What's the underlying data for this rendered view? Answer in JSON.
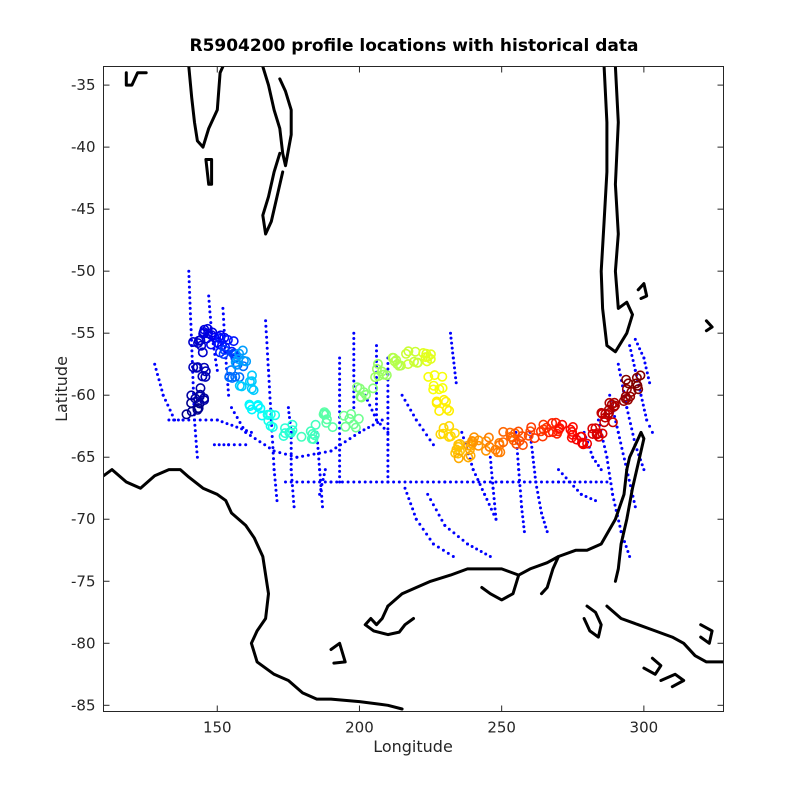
{
  "chart_data": {
    "type": "scatter",
    "title": "R5904200 profile locations with historical data",
    "xlabel": "Longitude",
    "ylabel": "Latitude",
    "xlim": [
      110,
      328
    ],
    "ylim": [
      -85.5,
      -33.5
    ],
    "xticks": [
      150,
      200,
      250,
      300
    ],
    "yticks": [
      -35,
      -40,
      -45,
      -50,
      -55,
      -60,
      -65,
      -70,
      -75,
      -80,
      -85
    ],
    "grid": false,
    "legend": "none",
    "colors": {
      "historical": "#0000ff",
      "coastline": "#000000",
      "frame": "#262626",
      "colormap": [
        "#00008f",
        "#0000ff",
        "#00ffff",
        "#80ff80",
        "#ffff00",
        "#ff8000",
        "#ff0000",
        "#800000"
      ]
    },
    "float_track": [
      [
        142,
        -61
      ],
      [
        143,
        -60
      ],
      [
        143.5,
        -58
      ],
      [
        144,
        -56
      ],
      [
        146,
        -55
      ],
      [
        150,
        -55.5
      ],
      [
        153,
        -56
      ],
      [
        155,
        -57
      ],
      [
        157,
        -58
      ],
      [
        159,
        -57
      ],
      [
        160,
        -59
      ],
      [
        163,
        -61
      ],
      [
        168,
        -62
      ],
      [
        175,
        -63
      ],
      [
        182,
        -63
      ],
      [
        190,
        -62
      ],
      [
        197,
        -62
      ],
      [
        202,
        -60
      ],
      [
        207,
        -58
      ],
      [
        212,
        -57
      ],
      [
        218,
        -57
      ],
      [
        223,
        -57
      ],
      [
        227,
        -59
      ],
      [
        229,
        -61
      ],
      [
        231,
        -63
      ],
      [
        233,
        -64.5
      ],
      [
        237,
        -64.5
      ],
      [
        242,
        -64
      ],
      [
        248,
        -64
      ],
      [
        253,
        -63.5
      ],
      [
        258,
        -63.5
      ],
      [
        263,
        -63
      ],
      [
        268,
        -62.5
      ],
      [
        273,
        -63
      ],
      [
        278,
        -63.5
      ],
      [
        283,
        -63
      ],
      [
        287,
        -62
      ],
      [
        290,
        -61
      ],
      [
        293,
        -60
      ],
      [
        296,
        -59
      ]
    ],
    "historical_lines": [
      [
        [
          140,
          -50
        ],
        [
          141,
          -56
        ],
        [
          142,
          -62
        ],
        [
          143,
          -65
        ]
      ],
      [
        [
          133,
          -62
        ],
        [
          138,
          -62
        ],
        [
          150,
          -62
        ],
        [
          162,
          -63
        ]
      ],
      [
        [
          128,
          -57.5
        ],
        [
          131,
          -60
        ],
        [
          135,
          -62
        ]
      ],
      [
        [
          147,
          -52
        ],
        [
          148,
          -55
        ],
        [
          150,
          -58
        ]
      ],
      [
        [
          152,
          -53
        ],
        [
          153,
          -57
        ],
        [
          154,
          -60
        ]
      ],
      [
        [
          155,
          -61
        ],
        [
          160,
          -63
        ],
        [
          170,
          -64.5
        ],
        [
          178,
          -65
        ],
        [
          190,
          -64.5
        ],
        [
          200,
          -63
        ],
        [
          208,
          -62
        ]
      ],
      [
        [
          149,
          -64
        ],
        [
          154,
          -64
        ],
        [
          160,
          -64
        ]
      ],
      [
        [
          167,
          -54
        ],
        [
          168,
          -58
        ],
        [
          169,
          -62
        ],
        [
          170,
          -66
        ],
        [
          171,
          -68.5
        ]
      ],
      [
        [
          175,
          -61
        ],
        [
          176,
          -63
        ],
        [
          176,
          -66
        ],
        [
          177,
          -69
        ]
      ],
      [
        [
          174,
          -67
        ],
        [
          190,
          -67
        ],
        [
          210,
          -67
        ],
        [
          230,
          -67
        ],
        [
          250,
          -67
        ],
        [
          270,
          -67
        ],
        [
          287,
          -67
        ]
      ],
      [
        [
          185,
          -63
        ],
        [
          186,
          -66
        ],
        [
          187,
          -69
        ]
      ],
      [
        [
          193,
          -57
        ],
        [
          193,
          -60
        ],
        [
          193,
          -64
        ],
        [
          193,
          -67
        ]
      ],
      [
        [
          210,
          -57
        ],
        [
          210,
          -61
        ],
        [
          210,
          -64
        ],
        [
          210,
          -67
        ]
      ],
      [
        [
          206,
          -56
        ],
        [
          206,
          -59
        ],
        [
          206,
          -62
        ]
      ],
      [
        [
          198,
          -55
        ],
        [
          198,
          -58
        ],
        [
          198,
          -61
        ]
      ],
      [
        [
          215,
          -60
        ],
        [
          220,
          -62
        ],
        [
          226,
          -64
        ]
      ],
      [
        [
          216,
          -67.5
        ],
        [
          220,
          -70
        ],
        [
          226,
          -72
        ],
        [
          233,
          -73
        ]
      ],
      [
        [
          224,
          -68
        ],
        [
          230,
          -70.5
        ],
        [
          238,
          -72
        ],
        [
          246,
          -73
        ]
      ],
      [
        [
          232,
          -55
        ],
        [
          233,
          -57
        ],
        [
          234,
          -59
        ]
      ],
      [
        [
          236,
          -63
        ],
        [
          240,
          -66
        ],
        [
          244,
          -68
        ],
        [
          248,
          -70
        ]
      ],
      [
        [
          255,
          -63
        ],
        [
          256,
          -66
        ],
        [
          257,
          -69
        ],
        [
          258,
          -71
        ]
      ],
      [
        [
          246,
          -65
        ],
        [
          247,
          -67.5
        ],
        [
          248,
          -70
        ]
      ],
      [
        [
          260,
          -63
        ],
        [
          261,
          -65
        ],
        [
          262,
          -67
        ],
        [
          264,
          -69.5
        ],
        [
          266,
          -71
        ]
      ],
      [
        [
          270,
          -66
        ],
        [
          274,
          -67
        ],
        [
          278,
          -68
        ],
        [
          283,
          -68.5
        ]
      ],
      [
        [
          284,
          -62
        ],
        [
          287,
          -65
        ],
        [
          289,
          -68
        ],
        [
          292,
          -71
        ],
        [
          295,
          -73
        ]
      ],
      [
        [
          288,
          -60
        ],
        [
          291,
          -63
        ],
        [
          294,
          -66
        ],
        [
          297,
          -69
        ]
      ],
      [
        [
          291,
          -57.5
        ],
        [
          294,
          -61
        ],
        [
          297,
          -64
        ],
        [
          300,
          -66
        ]
      ],
      [
        [
          295,
          -56
        ],
        [
          297,
          -58
        ],
        [
          299,
          -60
        ],
        [
          301,
          -62
        ],
        [
          303,
          -63
        ]
      ],
      [
        [
          297,
          -55.5
        ],
        [
          300,
          -57
        ],
        [
          302,
          -59
        ]
      ],
      [
        [
          279,
          -63
        ],
        [
          282,
          -65
        ],
        [
          285,
          -66
        ]
      ],
      [
        [
          202,
          -60
        ],
        [
          206,
          -62
        ],
        [
          210,
          -63
        ]
      ],
      [
        [
          188,
          -66
        ],
        [
          186,
          -68
        ]
      ]
    ],
    "coastlines": [
      [
        [
          110,
          -66.5
        ],
        [
          113,
          -66
        ],
        [
          118,
          -67
        ],
        [
          123,
          -67.5
        ],
        [
          128,
          -66.5
        ],
        [
          133,
          -66
        ],
        [
          137,
          -66
        ],
        [
          140,
          -66.6
        ],
        [
          145,
          -67.5
        ],
        [
          150,
          -68
        ],
        [
          153,
          -68.5
        ],
        [
          155,
          -69.5
        ],
        [
          160,
          -70.5
        ],
        [
          163,
          -71.5
        ],
        [
          166,
          -73
        ],
        [
          168,
          -76
        ],
        [
          167,
          -78
        ],
        [
          164,
          -79
        ],
        [
          162,
          -80
        ],
        [
          164,
          -81.5
        ],
        [
          170,
          -82.5
        ],
        [
          175,
          -83
        ],
        [
          180,
          -84
        ],
        [
          185,
          -84.5
        ],
        [
          190,
          -84.5
        ],
        [
          200,
          -84.7
        ],
        [
          210,
          -85
        ],
        [
          215,
          -85.3
        ]
      ],
      [
        [
          210,
          -77
        ],
        [
          215,
          -76
        ],
        [
          220,
          -75.5
        ],
        [
          225,
          -75
        ],
        [
          232,
          -74.5
        ],
        [
          238,
          -74
        ],
        [
          244,
          -74
        ],
        [
          250,
          -74
        ],
        [
          256,
          -74.5
        ],
        [
          260,
          -74
        ],
        [
          266,
          -73.5
        ],
        [
          270,
          -73
        ],
        [
          276,
          -72.5
        ],
        [
          280,
          -72.5
        ],
        [
          285,
          -72
        ],
        [
          290,
          -70
        ],
        [
          293,
          -68
        ],
        [
          294,
          -66
        ],
        [
          295,
          -65
        ],
        [
          296,
          -64.5
        ],
        [
          298,
          -63.5
        ],
        [
          299,
          -63
        ],
        [
          300,
          -63.5
        ],
        [
          298,
          -65.5
        ],
        [
          296,
          -67.5
        ],
        [
          294,
          -70
        ],
        [
          292,
          -72
        ],
        [
          291,
          -74
        ],
        [
          290,
          -75
        ]
      ],
      [
        [
          210,
          -77
        ],
        [
          208,
          -78
        ],
        [
          206,
          -78.5
        ],
        [
          204,
          -78
        ],
        [
          202,
          -78.5
        ],
        [
          205,
          -79
        ],
        [
          210,
          -79.3
        ],
        [
          214,
          -79.1
        ],
        [
          216,
          -78.5
        ],
        [
          219,
          -78
        ]
      ],
      [
        [
          256,
          -74.5
        ],
        [
          254,
          -76
        ],
        [
          250,
          -76.5
        ],
        [
          246,
          -76
        ],
        [
          243,
          -75.5
        ]
      ],
      [
        [
          270,
          -73
        ],
        [
          268,
          -74
        ],
        [
          266,
          -75.5
        ],
        [
          264,
          -76
        ]
      ],
      [
        [
          287,
          -77
        ],
        [
          292,
          -78
        ],
        [
          298,
          -78.5
        ],
        [
          304,
          -79
        ],
        [
          310,
          -79.5
        ],
        [
          314,
          -80
        ],
        [
          318,
          -81
        ],
        [
          322,
          -81.5
        ],
        [
          328,
          -81.5
        ]
      ],
      [
        [
          280,
          -77
        ],
        [
          283,
          -77.5
        ],
        [
          285,
          -78.5
        ],
        [
          284,
          -79.5
        ],
        [
          281,
          -79
        ],
        [
          279,
          -78
        ]
      ],
      [
        [
          300,
          -82
        ],
        [
          304,
          -82.5
        ],
        [
          306,
          -81.8
        ],
        [
          303,
          -81.2
        ]
      ],
      [
        [
          320,
          -78.5
        ],
        [
          324,
          -79
        ],
        [
          323,
          -80
        ],
        [
          320,
          -79.5
        ]
      ],
      [
        [
          306,
          -83
        ],
        [
          311,
          -82.5
        ],
        [
          314,
          -83
        ],
        [
          310,
          -83.5
        ]
      ],
      [
        [
          190,
          -80.5
        ],
        [
          193,
          -80
        ],
        [
          195,
          -81.5
        ],
        [
          191,
          -81.6
        ]
      ],
      [
        [
          118,
          -34
        ],
        [
          118,
          -35
        ],
        [
          120,
          -35
        ],
        [
          122,
          -34
        ],
        [
          125,
          -34
        ]
      ],
      [
        [
          140,
          -33.5
        ],
        [
          141,
          -36
        ],
        [
          142,
          -38
        ],
        [
          143,
          -39.5
        ],
        [
          145,
          -40
        ],
        [
          147,
          -38.5
        ],
        [
          150,
          -37
        ],
        [
          151,
          -34
        ],
        [
          152,
          -33.5
        ]
      ],
      [
        [
          146,
          -41
        ],
        [
          147,
          -43
        ],
        [
          148,
          -43
        ],
        [
          148,
          -41
        ],
        [
          146,
          -41
        ]
      ],
      [
        [
          166,
          -33.5
        ],
        [
          168,
          -35
        ],
        [
          170,
          -37
        ],
        [
          172,
          -38.5
        ],
        [
          173,
          -40.5
        ],
        [
          174,
          -41.5
        ],
        [
          176,
          -39
        ],
        [
          176,
          -37
        ],
        [
          174,
          -35.5
        ],
        [
          172,
          -34.5
        ]
      ],
      [
        [
          172,
          -40.5
        ],
        [
          170,
          -42
        ],
        [
          168,
          -44
        ],
        [
          166,
          -45.5
        ],
        [
          167,
          -47
        ],
        [
          169,
          -46
        ],
        [
          171,
          -44
        ],
        [
          173,
          -42
        ]
      ],
      [
        [
          286,
          -33.5
        ],
        [
          287,
          -38
        ],
        [
          287,
          -42
        ],
        [
          286,
          -46
        ],
        [
          285,
          -50
        ],
        [
          285.5,
          -53
        ],
        [
          287,
          -56
        ],
        [
          290,
          -56.5
        ],
        [
          294,
          -55
        ],
        [
          296,
          -53.5
        ],
        [
          294,
          -52.5
        ],
        [
          291,
          -53
        ],
        [
          290,
          -50
        ],
        [
          291,
          -47
        ],
        [
          290,
          -43
        ],
        [
          291,
          -38
        ],
        [
          290,
          -33.5
        ]
      ],
      [
        [
          298,
          -51.5
        ],
        [
          300,
          -51
        ],
        [
          301,
          -52
        ],
        [
          299,
          -52.2
        ]
      ],
      [
        [
          322,
          -54
        ],
        [
          324,
          -54.5
        ],
        [
          322,
          -54.8
        ]
      ]
    ]
  }
}
